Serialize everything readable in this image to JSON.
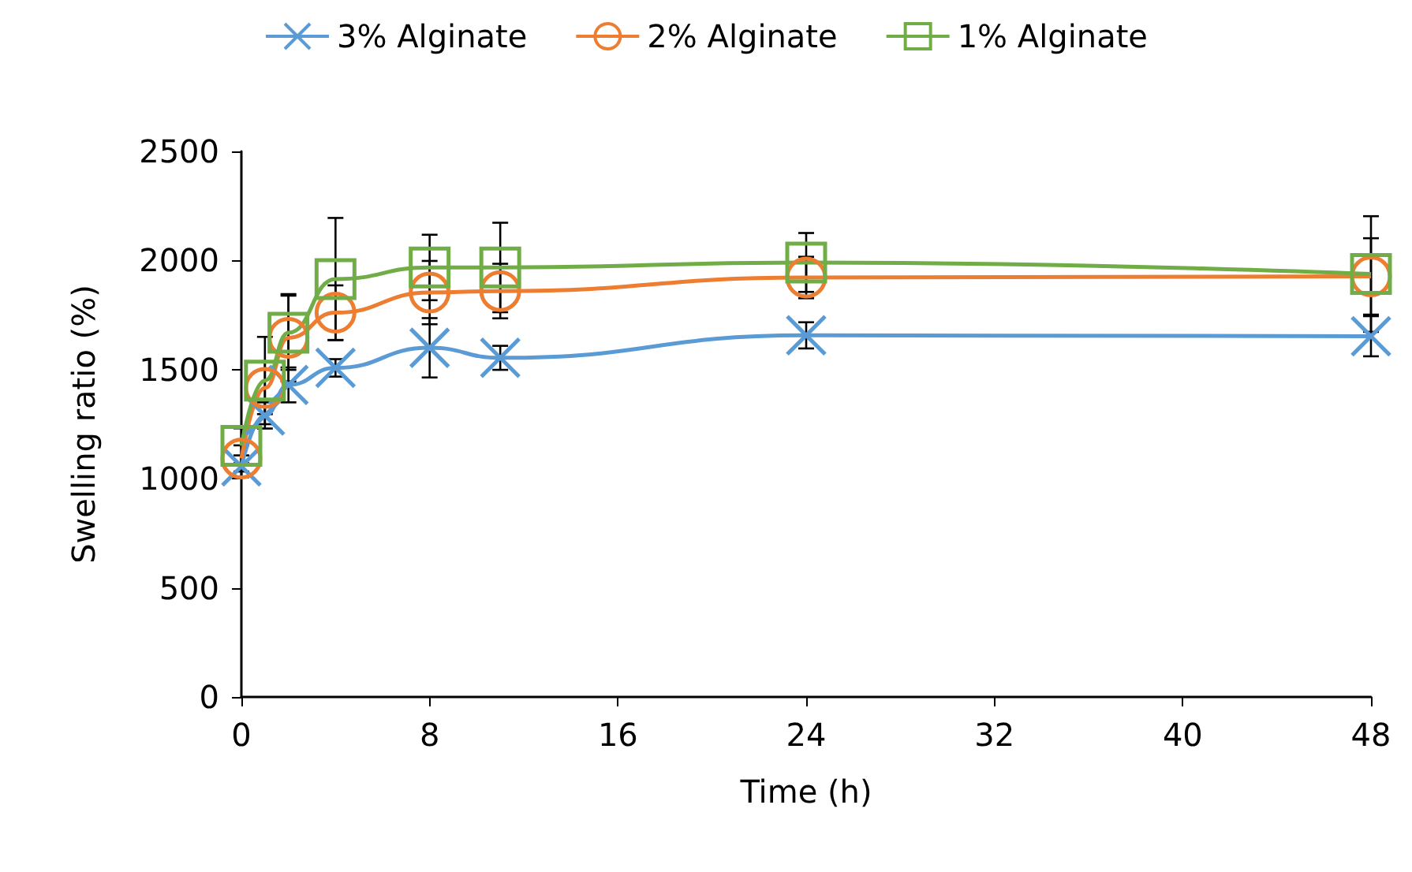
{
  "chart_data": {
    "type": "line",
    "xlabel": "Time (h)",
    "ylabel": "Swelling ratio (%)",
    "x": [
      0,
      1,
      2,
      4,
      8,
      11,
      24,
      48
    ],
    "xlim": [
      0,
      48
    ],
    "xticks": [
      0,
      8,
      16,
      24,
      32,
      40,
      48
    ],
    "ylim": [
      0,
      2500
    ],
    "yticks": [
      0,
      500,
      1000,
      1500,
      2000,
      2500
    ],
    "grid": false,
    "legend": "top",
    "series": [
      {
        "name": "3% Alginate",
        "color": "#5b9bd5",
        "marker": "cross",
        "values": [
          1057,
          1290,
          1430,
          1508,
          1600,
          1554,
          1657,
          1653
        ],
        "errors": [
          50,
          60,
          80,
          40,
          136,
          55,
          60,
          92
        ]
      },
      {
        "name": "2% Alginate",
        "color": "#ed7d31",
        "marker": "circle",
        "values": [
          1093,
          1416,
          1646,
          1761,
          1853,
          1860,
          1922,
          1927
        ],
        "errors": [
          60,
          120,
          200,
          125,
          145,
          125,
          95,
          175
        ]
      },
      {
        "name": "1% Alginate",
        "color": "#70ad47",
        "marker": "square",
        "values": [
          1151,
          1450,
          1669,
          1915,
          1968,
          1968,
          1991,
          1938
        ],
        "errors": [
          80,
          200,
          170,
          280,
          150,
          205,
          135,
          265
        ]
      }
    ]
  }
}
